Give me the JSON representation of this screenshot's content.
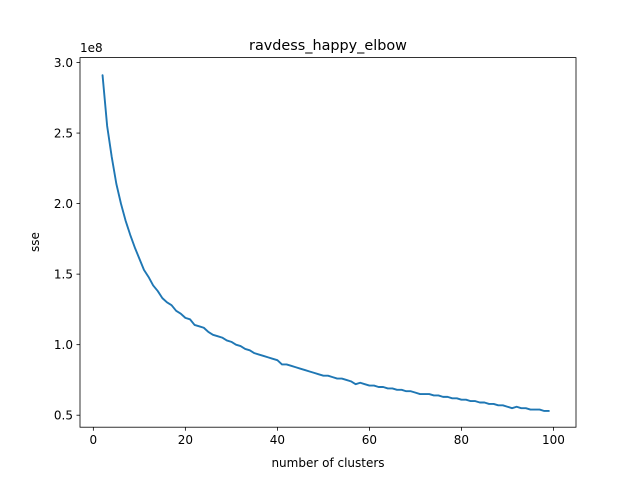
{
  "chart_data": {
    "type": "line",
    "title": "ravdess_happy_elbow",
    "xlabel": "number of clusters",
    "ylabel": "sse",
    "y_offset_label": "1e8",
    "xlim": [
      -2.9,
      104.9
    ],
    "ylim": [
      0.415,
      3.035
    ],
    "xticks": [
      0,
      20,
      40,
      60,
      80,
      100
    ],
    "yticks": [
      0.5,
      1.0,
      1.5,
      2.0,
      2.5,
      3.0
    ],
    "ytick_labels": [
      "0.5",
      "1.0",
      "1.5",
      "2.0",
      "2.5",
      "3.0"
    ],
    "grid": false,
    "series": [
      {
        "color": "#1f77b4",
        "x": [
          2,
          3,
          4,
          5,
          6,
          7,
          8,
          9,
          10,
          11,
          12,
          13,
          14,
          15,
          16,
          17,
          18,
          19,
          20,
          21,
          22,
          23,
          24,
          25,
          26,
          27,
          28,
          29,
          30,
          31,
          32,
          33,
          34,
          35,
          36,
          37,
          38,
          39,
          40,
          41,
          42,
          43,
          44,
          45,
          46,
          47,
          48,
          49,
          50,
          51,
          52,
          53,
          54,
          55,
          56,
          57,
          58,
          59,
          60,
          61,
          62,
          63,
          64,
          65,
          66,
          67,
          68,
          69,
          70,
          71,
          72,
          73,
          74,
          75,
          76,
          77,
          78,
          79,
          80,
          81,
          82,
          83,
          84,
          85,
          86,
          87,
          88,
          89,
          90,
          91,
          92,
          93,
          94,
          95,
          96,
          97,
          98,
          99
        ],
        "y": [
          2.91,
          2.55,
          2.33,
          2.14,
          2.0,
          1.88,
          1.78,
          1.69,
          1.61,
          1.53,
          1.48,
          1.42,
          1.38,
          1.33,
          1.3,
          1.28,
          1.24,
          1.22,
          1.19,
          1.18,
          1.14,
          1.13,
          1.12,
          1.09,
          1.07,
          1.06,
          1.05,
          1.03,
          1.02,
          1.0,
          0.99,
          0.97,
          0.96,
          0.94,
          0.93,
          0.92,
          0.91,
          0.9,
          0.89,
          0.86,
          0.86,
          0.85,
          0.84,
          0.83,
          0.82,
          0.81,
          0.8,
          0.79,
          0.78,
          0.78,
          0.77,
          0.76,
          0.76,
          0.75,
          0.74,
          0.72,
          0.73,
          0.72,
          0.71,
          0.71,
          0.7,
          0.7,
          0.69,
          0.69,
          0.68,
          0.68,
          0.67,
          0.67,
          0.66,
          0.65,
          0.65,
          0.65,
          0.64,
          0.64,
          0.63,
          0.63,
          0.62,
          0.62,
          0.61,
          0.61,
          0.6,
          0.6,
          0.59,
          0.59,
          0.58,
          0.58,
          0.57,
          0.57,
          0.56,
          0.55,
          0.56,
          0.55,
          0.55,
          0.54,
          0.54,
          0.54,
          0.53,
          0.53
        ]
      }
    ]
  }
}
